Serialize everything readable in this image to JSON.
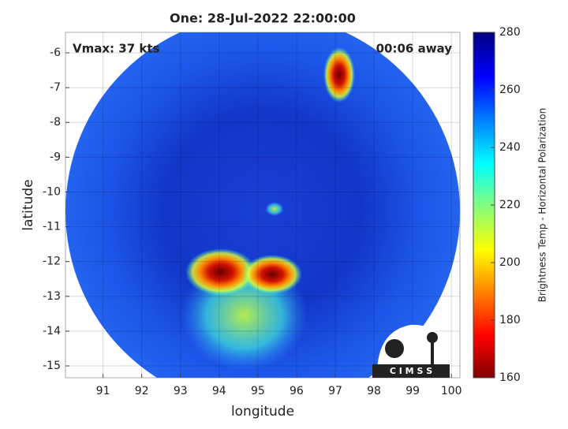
{
  "chart_data": {
    "type": "image",
    "title": "One: 28-Jul-2022 22:00:00",
    "annotations": [
      "Vmax: 37 kts",
      "00:06 away"
    ],
    "x_label": "longitude",
    "y_label": "latitude",
    "xlim": [
      90.03,
      100.22
    ],
    "ylim": [
      -15.34,
      -5.41
    ],
    "xticks": [
      91,
      92,
      93,
      94,
      95,
      96,
      97,
      98,
      99,
      100
    ],
    "yticks": [
      -15,
      -14,
      -13,
      -12,
      -11,
      -10,
      -9,
      -8,
      -7,
      -6
    ],
    "grid": true,
    "colorbar": {
      "label": "Brightness Temp - Horizontal Polarization",
      "lim": [
        160,
        280
      ],
      "ticks": [
        160,
        180,
        200,
        220,
        240,
        260,
        280
      ]
    },
    "logo": "C I M S S"
  }
}
